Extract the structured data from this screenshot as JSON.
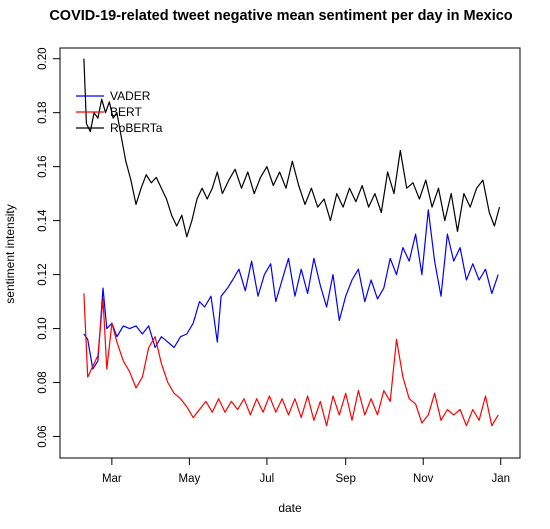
{
  "chart_data": {
    "type": "line",
    "title": "COVID-19-related tweet negative mean sentiment per day in Mexico",
    "xlabel": "date",
    "ylabel": "sentiment intensity",
    "xlim": [
      "2020-02-01",
      "2021-01-02"
    ],
    "ylim": [
      0.055,
      0.201
    ],
    "x_ticks": [
      {
        "date": "2020-03-01",
        "label": "Mar"
      },
      {
        "date": "2020-05-01",
        "label": "May"
      },
      {
        "date": "2020-07-01",
        "label": "Jul"
      },
      {
        "date": "2020-09-01",
        "label": "Sep"
      },
      {
        "date": "2020-11-01",
        "label": "Nov"
      },
      {
        "date": "2021-01-01",
        "label": "Jan"
      }
    ],
    "y_ticks": [
      0.06,
      0.08,
      0.1,
      0.12,
      0.14,
      0.16,
      0.18,
      0.2
    ],
    "y_tick_labels": [
      "0.06",
      "0.08",
      "0.10",
      "0.12",
      "0.14",
      "0.16",
      "0.18",
      "0.20"
    ],
    "legend_position": "top-left",
    "grid": false,
    "series": [
      {
        "name": "VADER",
        "color": "#0000ff",
        "points": [
          [
            "2020-02-08",
            0.098
          ],
          [
            "2020-02-11",
            0.096
          ],
          [
            "2020-02-15",
            0.085
          ],
          [
            "2020-02-19",
            0.088
          ],
          [
            "2020-02-23",
            0.115
          ],
          [
            "2020-02-26",
            0.1
          ],
          [
            "2020-03-01",
            0.102
          ],
          [
            "2020-03-05",
            0.097
          ],
          [
            "2020-03-10",
            0.101
          ],
          [
            "2020-03-15",
            0.1
          ],
          [
            "2020-03-20",
            0.101
          ],
          [
            "2020-03-25",
            0.098
          ],
          [
            "2020-03-30",
            0.101
          ],
          [
            "2020-04-04",
            0.093
          ],
          [
            "2020-04-09",
            0.097
          ],
          [
            "2020-04-14",
            0.095
          ],
          [
            "2020-04-19",
            0.093
          ],
          [
            "2020-04-24",
            0.097
          ],
          [
            "2020-04-29",
            0.098
          ],
          [
            "2020-05-04",
            0.102
          ],
          [
            "2020-05-09",
            0.11
          ],
          [
            "2020-05-13",
            0.108
          ],
          [
            "2020-05-18",
            0.112
          ],
          [
            "2020-05-23",
            0.095
          ],
          [
            "2020-05-26",
            0.112
          ],
          [
            "2020-05-31",
            0.115
          ],
          [
            "2020-06-04",
            0.118
          ],
          [
            "2020-06-09",
            0.122
          ],
          [
            "2020-06-14",
            0.114
          ],
          [
            "2020-06-19",
            0.125
          ],
          [
            "2020-06-24",
            0.112
          ],
          [
            "2020-06-29",
            0.12
          ],
          [
            "2020-07-04",
            0.124
          ],
          [
            "2020-07-08",
            0.11
          ],
          [
            "2020-07-13",
            0.118
          ],
          [
            "2020-07-18",
            0.126
          ],
          [
            "2020-07-23",
            0.112
          ],
          [
            "2020-07-28",
            0.122
          ],
          [
            "2020-08-02",
            0.113
          ],
          [
            "2020-08-07",
            0.126
          ],
          [
            "2020-08-12",
            0.116
          ],
          [
            "2020-08-17",
            0.108
          ],
          [
            "2020-08-22",
            0.12
          ],
          [
            "2020-08-27",
            0.103
          ],
          [
            "2020-09-01",
            0.112
          ],
          [
            "2020-09-06",
            0.118
          ],
          [
            "2020-09-11",
            0.122
          ],
          [
            "2020-09-16",
            0.11
          ],
          [
            "2020-09-21",
            0.118
          ],
          [
            "2020-09-26",
            0.111
          ],
          [
            "2020-10-01",
            0.115
          ],
          [
            "2020-10-06",
            0.126
          ],
          [
            "2020-10-11",
            0.12
          ],
          [
            "2020-10-16",
            0.13
          ],
          [
            "2020-10-21",
            0.125
          ],
          [
            "2020-10-26",
            0.135
          ],
          [
            "2020-10-31",
            0.12
          ],
          [
            "2020-11-05",
            0.144
          ],
          [
            "2020-11-10",
            0.125
          ],
          [
            "2020-11-15",
            0.112
          ],
          [
            "2020-11-20",
            0.135
          ],
          [
            "2020-11-25",
            0.125
          ],
          [
            "2020-11-30",
            0.13
          ],
          [
            "2020-12-05",
            0.118
          ],
          [
            "2020-12-10",
            0.124
          ],
          [
            "2020-12-15",
            0.118
          ],
          [
            "2020-12-20",
            0.122
          ],
          [
            "2020-12-25",
            0.113
          ],
          [
            "2020-12-30",
            0.12
          ]
        ]
      },
      {
        "name": "BERT",
        "color": "#ff0000",
        "points": [
          [
            "2020-02-08",
            0.113
          ],
          [
            "2020-02-11",
            0.082
          ],
          [
            "2020-02-15",
            0.086
          ],
          [
            "2020-02-19",
            0.09
          ],
          [
            "2020-02-23",
            0.111
          ],
          [
            "2020-02-26",
            0.085
          ],
          [
            "2020-03-01",
            0.102
          ],
          [
            "2020-03-05",
            0.095
          ],
          [
            "2020-03-10",
            0.088
          ],
          [
            "2020-03-15",
            0.084
          ],
          [
            "2020-03-20",
            0.078
          ],
          [
            "2020-03-25",
            0.082
          ],
          [
            "2020-03-30",
            0.093
          ],
          [
            "2020-04-04",
            0.097
          ],
          [
            "2020-04-09",
            0.087
          ],
          [
            "2020-04-14",
            0.08
          ],
          [
            "2020-04-19",
            0.076
          ],
          [
            "2020-04-24",
            0.074
          ],
          [
            "2020-04-29",
            0.071
          ],
          [
            "2020-05-04",
            0.067
          ],
          [
            "2020-05-09",
            0.07
          ],
          [
            "2020-05-14",
            0.073
          ],
          [
            "2020-05-19",
            0.069
          ],
          [
            "2020-05-24",
            0.074
          ],
          [
            "2020-05-29",
            0.069
          ],
          [
            "2020-06-03",
            0.073
          ],
          [
            "2020-06-08",
            0.07
          ],
          [
            "2020-06-13",
            0.074
          ],
          [
            "2020-06-18",
            0.068
          ],
          [
            "2020-06-23",
            0.074
          ],
          [
            "2020-06-28",
            0.069
          ],
          [
            "2020-07-03",
            0.075
          ],
          [
            "2020-07-08",
            0.069
          ],
          [
            "2020-07-13",
            0.074
          ],
          [
            "2020-07-18",
            0.068
          ],
          [
            "2020-07-23",
            0.074
          ],
          [
            "2020-07-28",
            0.067
          ],
          [
            "2020-08-02",
            0.075
          ],
          [
            "2020-08-07",
            0.066
          ],
          [
            "2020-08-12",
            0.073
          ],
          [
            "2020-08-17",
            0.064
          ],
          [
            "2020-08-22",
            0.075
          ],
          [
            "2020-08-27",
            0.068
          ],
          [
            "2020-09-01",
            0.076
          ],
          [
            "2020-09-06",
            0.066
          ],
          [
            "2020-09-11",
            0.077
          ],
          [
            "2020-09-16",
            0.068
          ],
          [
            "2020-09-21",
            0.074
          ],
          [
            "2020-09-26",
            0.068
          ],
          [
            "2020-10-01",
            0.077
          ],
          [
            "2020-10-06",
            0.073
          ],
          [
            "2020-10-11",
            0.096
          ],
          [
            "2020-10-16",
            0.082
          ],
          [
            "2020-10-21",
            0.074
          ],
          [
            "2020-10-26",
            0.072
          ],
          [
            "2020-10-31",
            0.065
          ],
          [
            "2020-11-05",
            0.068
          ],
          [
            "2020-11-10",
            0.076
          ],
          [
            "2020-11-15",
            0.066
          ],
          [
            "2020-11-20",
            0.07
          ],
          [
            "2020-11-25",
            0.068
          ],
          [
            "2020-11-30",
            0.07
          ],
          [
            "2020-12-05",
            0.064
          ],
          [
            "2020-12-10",
            0.07
          ],
          [
            "2020-12-15",
            0.066
          ],
          [
            "2020-12-20",
            0.075
          ],
          [
            "2020-12-25",
            0.064
          ],
          [
            "2020-12-30",
            0.068
          ]
        ]
      },
      {
        "name": "RoBERTa",
        "color": "#000000",
        "points": [
          [
            "2020-02-08",
            0.2
          ],
          [
            "2020-02-10",
            0.176
          ],
          [
            "2020-02-13",
            0.173
          ],
          [
            "2020-02-16",
            0.18
          ],
          [
            "2020-02-19",
            0.178
          ],
          [
            "2020-02-22",
            0.185
          ],
          [
            "2020-02-25",
            0.18
          ],
          [
            "2020-02-28",
            0.184
          ],
          [
            "2020-03-02",
            0.178
          ],
          [
            "2020-03-05",
            0.18
          ],
          [
            "2020-03-08",
            0.172
          ],
          [
            "2020-03-12",
            0.162
          ],
          [
            "2020-03-16",
            0.155
          ],
          [
            "2020-03-20",
            0.146
          ],
          [
            "2020-03-24",
            0.152
          ],
          [
            "2020-03-28",
            0.157
          ],
          [
            "2020-04-01",
            0.154
          ],
          [
            "2020-04-05",
            0.156
          ],
          [
            "2020-04-09",
            0.152
          ],
          [
            "2020-04-13",
            0.148
          ],
          [
            "2020-04-17",
            0.142
          ],
          [
            "2020-04-21",
            0.138
          ],
          [
            "2020-04-25",
            0.142
          ],
          [
            "2020-04-29",
            0.134
          ],
          [
            "2020-05-03",
            0.14
          ],
          [
            "2020-05-07",
            0.148
          ],
          [
            "2020-05-11",
            0.152
          ],
          [
            "2020-05-15",
            0.148
          ],
          [
            "2020-05-19",
            0.152
          ],
          [
            "2020-05-23",
            0.158
          ],
          [
            "2020-05-27",
            0.15
          ],
          [
            "2020-06-01",
            0.155
          ],
          [
            "2020-06-06",
            0.159
          ],
          [
            "2020-06-11",
            0.152
          ],
          [
            "2020-06-16",
            0.158
          ],
          [
            "2020-06-21",
            0.15
          ],
          [
            "2020-06-26",
            0.156
          ],
          [
            "2020-07-01",
            0.16
          ],
          [
            "2020-07-06",
            0.153
          ],
          [
            "2020-07-11",
            0.158
          ],
          [
            "2020-07-16",
            0.152
          ],
          [
            "2020-07-21",
            0.162
          ],
          [
            "2020-07-26",
            0.153
          ],
          [
            "2020-07-31",
            0.146
          ],
          [
            "2020-08-05",
            0.152
          ],
          [
            "2020-08-10",
            0.145
          ],
          [
            "2020-08-15",
            0.148
          ],
          [
            "2020-08-20",
            0.14
          ],
          [
            "2020-08-25",
            0.15
          ],
          [
            "2020-08-30",
            0.145
          ],
          [
            "2020-09-04",
            0.152
          ],
          [
            "2020-09-09",
            0.147
          ],
          [
            "2020-09-14",
            0.153
          ],
          [
            "2020-09-19",
            0.145
          ],
          [
            "2020-09-24",
            0.15
          ],
          [
            "2020-09-29",
            0.143
          ],
          [
            "2020-10-04",
            0.158
          ],
          [
            "2020-10-09",
            0.15
          ],
          [
            "2020-10-14",
            0.166
          ],
          [
            "2020-10-19",
            0.152
          ],
          [
            "2020-10-24",
            0.154
          ],
          [
            "2020-10-29",
            0.148
          ],
          [
            "2020-11-03",
            0.155
          ],
          [
            "2020-11-08",
            0.145
          ],
          [
            "2020-11-13",
            0.152
          ],
          [
            "2020-11-18",
            0.14
          ],
          [
            "2020-11-23",
            0.15
          ],
          [
            "2020-11-28",
            0.136
          ],
          [
            "2020-12-03",
            0.15
          ],
          [
            "2020-12-08",
            0.145
          ],
          [
            "2020-12-13",
            0.152
          ],
          [
            "2020-12-18",
            0.155
          ],
          [
            "2020-12-23",
            0.143
          ],
          [
            "2020-12-27",
            0.138
          ],
          [
            "2020-12-31",
            0.145
          ]
        ]
      }
    ]
  }
}
